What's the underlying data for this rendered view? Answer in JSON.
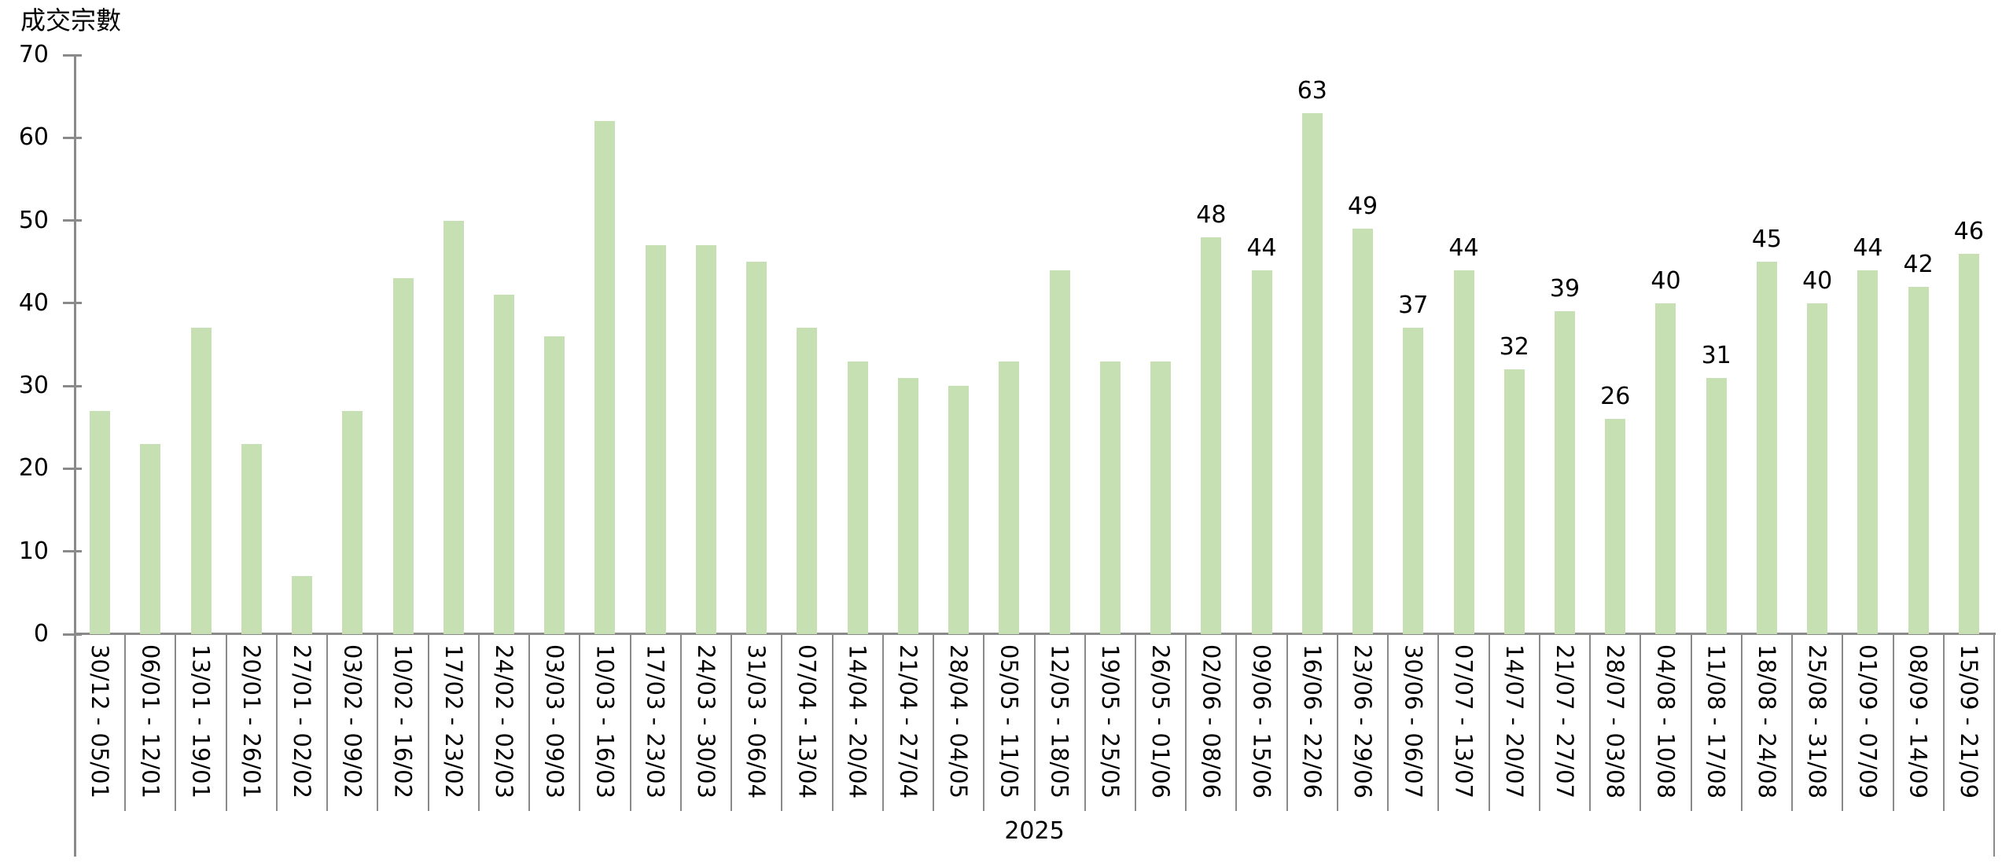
{
  "chart_data": {
    "type": "bar",
    "title": "成交宗數",
    "ylabel": "成交宗數",
    "xlabel": "2025",
    "ylim": [
      0,
      70
    ],
    "yticks": [
      0,
      10,
      20,
      30,
      40,
      50,
      60,
      70
    ],
    "grid": "off",
    "legend": "none",
    "bar_color": "#c6e0b4",
    "axis_color": "#8a8a8a",
    "text_color": "#000000",
    "categories": [
      "30/12 - 05/01",
      "06/01 - 12/01",
      "13/01 - 19/01",
      "20/01 - 26/01",
      "27/01 - 02/02",
      "03/02 - 09/02",
      "10/02 - 16/02",
      "17/02 - 23/02",
      "24/02 - 02/03",
      "03/03 - 09/03",
      "10/03 - 16/03",
      "17/03 - 23/03",
      "24/03 - 30/03",
      "31/03 - 06/04",
      "07/04 - 13/04",
      "14/04 - 20/04",
      "21/04 - 27/04",
      "28/04 - 04/05",
      "05/05 - 11/05",
      "12/05 - 18/05",
      "19/05 - 25/05",
      "26/05 - 01/06",
      "02/06 - 08/06",
      "09/06 - 15/06",
      "16/06 - 22/06",
      "23/06 - 29/06",
      "30/06 - 06/07",
      "07/07 - 13/07",
      "14/07 - 20/07",
      "21/07 - 27/07",
      "28/07 - 03/08",
      "04/08 - 10/08",
      "11/08 - 17/08",
      "18/08 - 24/08",
      "25/08 - 31/08",
      "01/09 - 07/09",
      "08/09 - 14/09",
      "15/09 - 21/09"
    ],
    "values": [
      27,
      23,
      37,
      23,
      7,
      27,
      43,
      50,
      41,
      36,
      62,
      47,
      47,
      45,
      37,
      33,
      31,
      30,
      33,
      44,
      33,
      33,
      48,
      44,
      63,
      49,
      37,
      44,
      32,
      39,
      26,
      40,
      31,
      45,
      40,
      44,
      42,
      46
    ],
    "value_labels_from_index": 22
  }
}
